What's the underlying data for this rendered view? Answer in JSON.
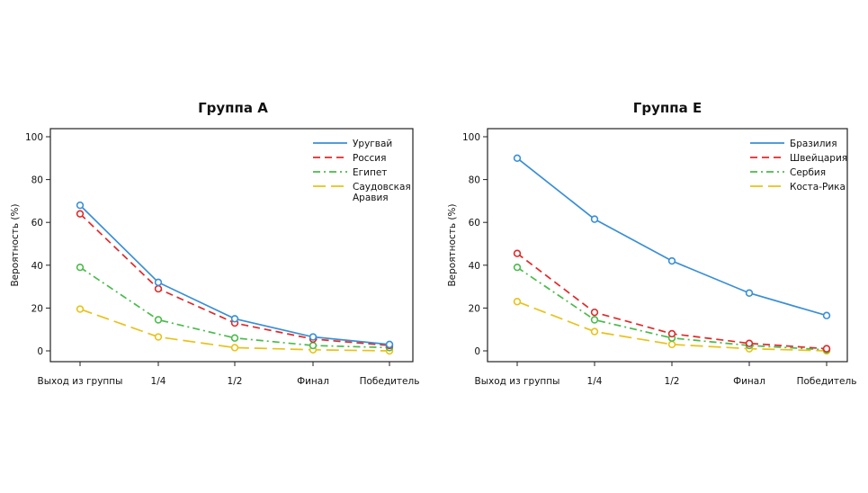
{
  "chart_data": [
    {
      "type": "line",
      "title": "Группа А",
      "ylabel": "Вероятность (%)",
      "xlabel": "",
      "categories": [
        "Выход из группы",
        "1/4",
        "1/2",
        "Финал",
        "Победитель"
      ],
      "ylim": [
        0,
        100
      ],
      "yticks": [
        0,
        20,
        40,
        60,
        80,
        100
      ],
      "legend_position": "top-right",
      "grid": false,
      "series": [
        {
          "name": "Уругвай",
          "values": [
            68,
            32,
            15,
            6.5,
            3
          ],
          "color": "#3a8fd6",
          "style": "solid"
        },
        {
          "name": "Россия",
          "values": [
            64,
            29,
            13,
            5.5,
            2.5
          ],
          "color": "#e02a2a",
          "style": "dashed"
        },
        {
          "name": "Египет",
          "values": [
            39,
            14.5,
            6,
            2.5,
            1.5
          ],
          "color": "#4cbb4c",
          "style": "dashdot"
        },
        {
          "name": "Саудовская\nАравия",
          "values": [
            19.5,
            6.5,
            1.5,
            0.5,
            0
          ],
          "color": "#e8c21a",
          "style": "longdash"
        }
      ]
    },
    {
      "type": "line",
      "title": "Группа E",
      "ylabel": "Вероятность (%)",
      "xlabel": "",
      "categories": [
        "Выход из группы",
        "1/4",
        "1/2",
        "Финал",
        "Победитель"
      ],
      "ylim": [
        0,
        100
      ],
      "yticks": [
        0,
        20,
        40,
        60,
        80,
        100
      ],
      "legend_position": "top-right",
      "grid": false,
      "series": [
        {
          "name": "Бразилия",
          "values": [
            90,
            61.5,
            42,
            27,
            16.5
          ],
          "color": "#3a8fd6",
          "style": "solid"
        },
        {
          "name": "Швейцария",
          "values": [
            45.5,
            18,
            8,
            3.5,
            1
          ],
          "color": "#e02a2a",
          "style": "dashed"
        },
        {
          "name": "Сербия",
          "values": [
            39,
            14.5,
            6,
            2.5,
            0.5
          ],
          "color": "#4cbb4c",
          "style": "dashdot"
        },
        {
          "name": "Коста-Рика",
          "values": [
            23,
            9,
            3,
            1,
            0
          ],
          "color": "#e8c21a",
          "style": "longdash"
        }
      ]
    }
  ]
}
